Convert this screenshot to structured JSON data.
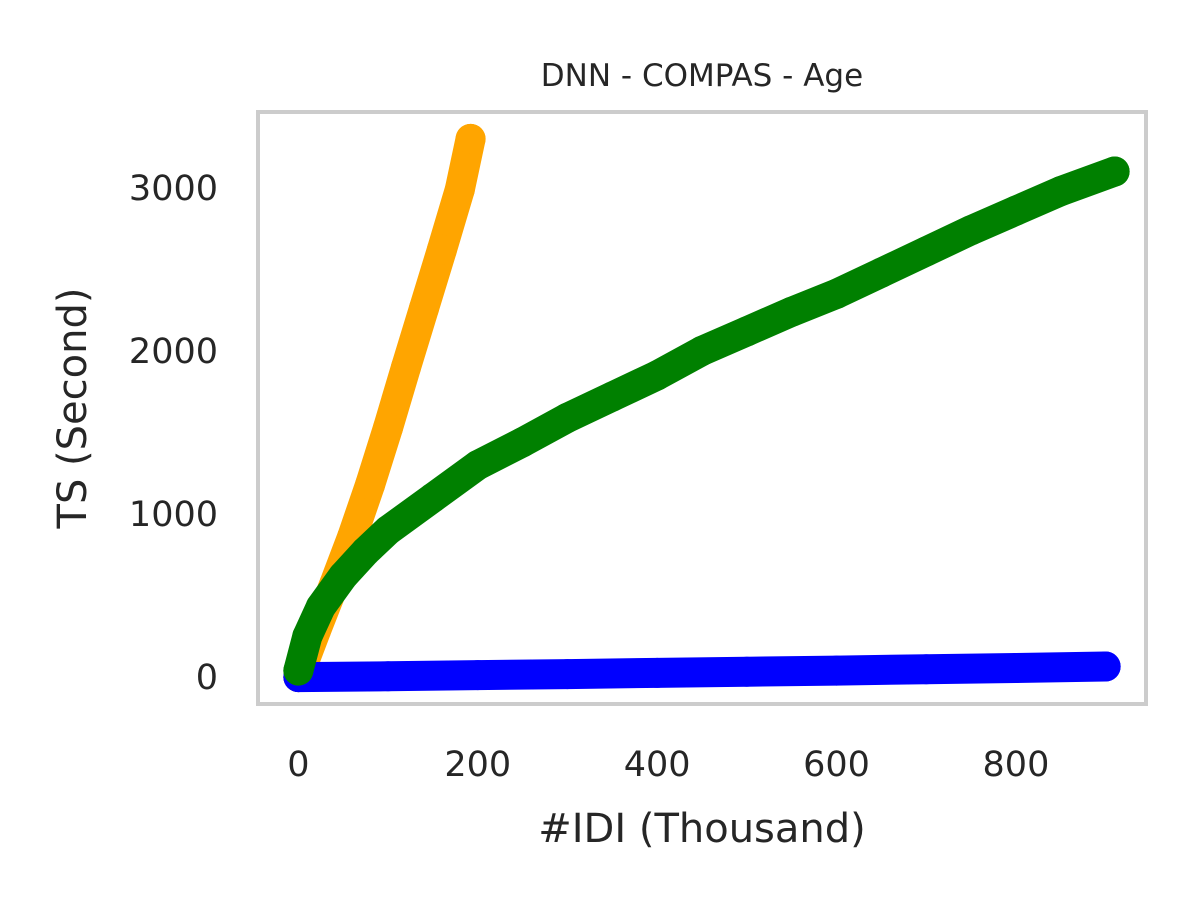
{
  "chart_data": {
    "type": "line",
    "title": "DNN - COMPAS - Age",
    "xlabel": "#IDI (Thousand)",
    "ylabel": "TS (Second)",
    "xlim": [
      -45,
      945
    ],
    "ylim": [
      -165,
      3465
    ],
    "xticks": [
      0,
      200,
      400,
      600,
      800
    ],
    "yticks": [
      0,
      1000,
      2000,
      3000
    ],
    "grid": false,
    "legend": "none",
    "series": [
      {
        "name": "orange-series",
        "color": "#ffa500",
        "x": [
          0,
          20,
          40,
          60,
          80,
          100,
          120,
          140,
          160,
          180,
          192
        ],
        "y": [
          0,
          290,
          570,
          860,
          1180,
          1530,
          1900,
          2260,
          2620,
          2990,
          3300
        ]
      },
      {
        "name": "blue-series",
        "color": "#0000ff",
        "x": [
          0,
          100,
          200,
          300,
          400,
          500,
          600,
          700,
          800,
          900
        ],
        "y": [
          0,
          5,
          12,
          18,
          26,
          33,
          40,
          48,
          56,
          65
        ]
      },
      {
        "name": "green-series",
        "color": "#008000",
        "x": [
          0,
          10,
          25,
          50,
          75,
          100,
          150,
          200,
          250,
          300,
          350,
          400,
          450,
          500,
          550,
          600,
          650,
          700,
          750,
          800,
          850,
          910
        ],
        "y": [
          40,
          250,
          430,
          620,
          770,
          900,
          1100,
          1300,
          1440,
          1590,
          1720,
          1850,
          2000,
          2120,
          2240,
          2350,
          2480,
          2610,
          2740,
          2860,
          2980,
          3100
        ]
      }
    ]
  }
}
